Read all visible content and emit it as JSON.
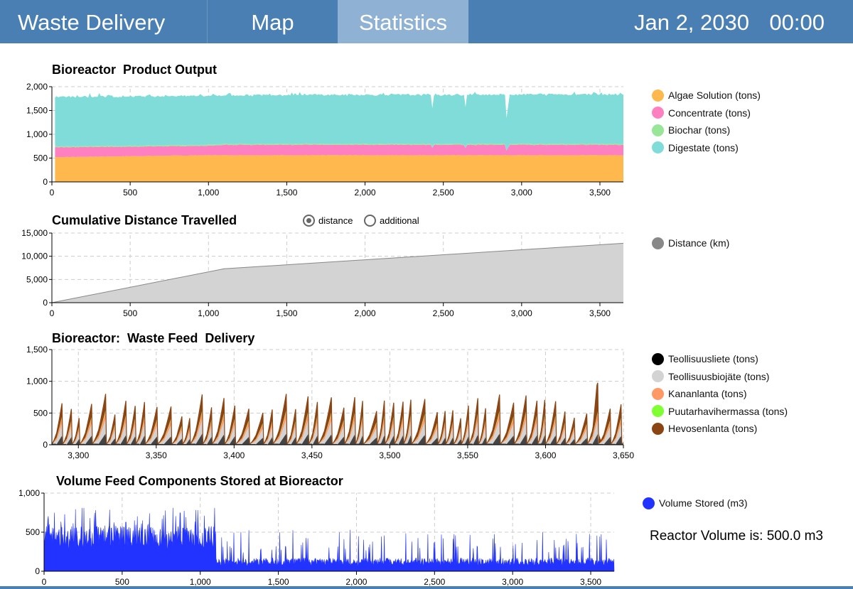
{
  "header": {
    "tabs": [
      {
        "label": "Waste Delivery",
        "active": false
      },
      {
        "label": "Map",
        "active": false
      },
      {
        "label": "Statistics",
        "active": true
      }
    ],
    "date": "Jan 2, 2030",
    "time": "00:00",
    "bar_color": "#4a7fb4",
    "active_tab_color": "#8fb2d4"
  },
  "reactor_note": "Reactor Volume is: 500.0 m3",
  "toggle": {
    "options": [
      {
        "label": "distance",
        "selected": true
      },
      {
        "label": "additional",
        "selected": false
      }
    ]
  },
  "chart_data": [
    {
      "type": "area",
      "stacked": true,
      "title": "Bioreactor  Product Output",
      "xlim": [
        0,
        3650
      ],
      "ylim": [
        0,
        2000
      ],
      "x_ticks": [
        "0",
        "500",
        "1,000",
        "1,500",
        "2,000",
        "2,500",
        "3,000",
        "3,500"
      ],
      "y_ticks": [
        "0",
        "500",
        "1,000",
        "1,500",
        "2,000"
      ],
      "grid": true,
      "legend_position": "right",
      "series": [
        {
          "name": "Algae Solution (tons)",
          "color": "#ffb84d",
          "values": [
            520,
            540,
            560,
            560,
            560,
            560,
            560,
            560,
            560
          ]
        },
        {
          "name": "Concentrate (tons)",
          "color": "#ff80c0",
          "values": [
            210,
            200,
            200,
            220,
            220,
            220,
            220,
            220,
            220
          ]
        },
        {
          "name": "Biochar (tons)",
          "color": "#99e699",
          "values": [
            20,
            20,
            20,
            20,
            20,
            20,
            20,
            20,
            20
          ]
        },
        {
          "name": "Digestate (tons)",
          "color": "#7fdcd9",
          "values": [
            1040,
            1040,
            1030,
            1020,
            1030,
            1030,
            1030,
            1040,
            1040
          ]
        }
      ],
      "x": [
        20,
        500,
        1000,
        1100,
        1500,
        2000,
        2500,
        3000,
        3650
      ]
    },
    {
      "type": "area",
      "title": "Cumulative Distance Travelled",
      "xlim": [
        0,
        3650
      ],
      "ylim": [
        0,
        15000
      ],
      "x_ticks": [
        "0",
        "500",
        "1,000",
        "1,500",
        "2,000",
        "2,500",
        "3,000",
        "3,500"
      ],
      "y_ticks": [
        "0",
        "5,000",
        "10,000",
        "15,000"
      ],
      "grid": true,
      "legend_position": "right",
      "series": [
        {
          "name": "Distance (km)",
          "color": "#d3d3d3",
          "line_color": "#888888",
          "x": [
            0,
            1100,
            3650
          ],
          "values": [
            0,
            7300,
            12800
          ]
        }
      ]
    },
    {
      "type": "area",
      "stacked": true,
      "title": "Bioreactor:  Waste Feed  Delivery",
      "xlim": [
        3283,
        3650
      ],
      "ylim": [
        0,
        1500
      ],
      "x_ticks": [
        "3,300",
        "3,350",
        "3,400",
        "3,450",
        "3,500",
        "3,550",
        "3,600",
        "3,650"
      ],
      "y_ticks": [
        "0",
        "500",
        "1,000",
        "1,500"
      ],
      "grid": true,
      "legend_position": "right",
      "series": [
        {
          "name": "Teollisuusliete (tons)",
          "color": "#000000",
          "typical_peak": 180
        },
        {
          "name": "Teollisuusbiojäte (tons)",
          "color": "#d3d3d3",
          "typical_peak": 230
        },
        {
          "name": "Kananlanta (tons)",
          "color": "#ff9966",
          "typical_peak": 120
        },
        {
          "name": "Puutarhavihermassa (tons)",
          "color": "#80ff33",
          "typical_peak": 20
        },
        {
          "name": "Hevosenlanta (tons)",
          "color": "#8b4513",
          "typical_peak": 250
        }
      ],
      "max_peak": {
        "x": 3633,
        "value": 960
      }
    },
    {
      "type": "bar",
      "title": "Volume Feed Components Stored at Bioreactor",
      "xlim": [
        0,
        3650
      ],
      "ylim": [
        0,
        1000
      ],
      "x_ticks": [
        "0",
        "500",
        "1,000",
        "1,500",
        "2,000",
        "2,500",
        "3,000",
        "3,500"
      ],
      "y_ticks": [
        "0",
        "500",
        "1,000"
      ],
      "grid": true,
      "legend_position": "right",
      "series": [
        {
          "name": "Volume Stored (m3)",
          "color": "#2233ff",
          "typical_before_1100": 430,
          "typical_after_1100": 120,
          "max": 810
        }
      ]
    }
  ]
}
